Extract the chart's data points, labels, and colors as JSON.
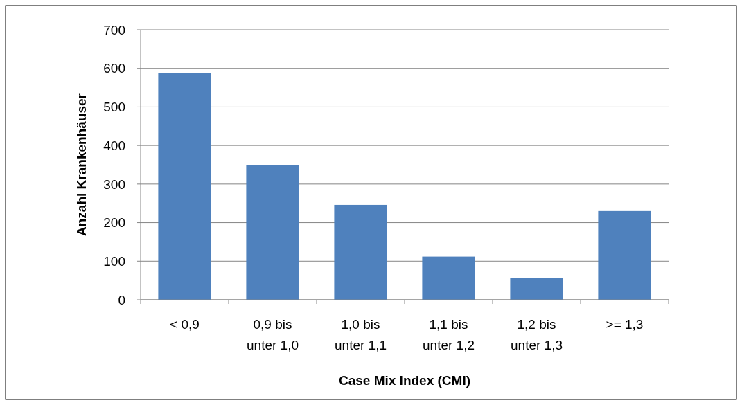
{
  "chart_data": {
    "type": "bar",
    "xlabel": "Case Mix Index (CMI)",
    "ylabel": "Anzahl Krankenhäuser",
    "categories": [
      "< 0,9",
      "0,9 bis\nunter 1,0",
      "1,0 bis\nunter 1,1",
      "1,1 bis\nunter 1,2",
      "1,2 bis\nunter 1,3",
      ">= 1,3"
    ],
    "values": [
      588,
      350,
      246,
      112,
      57,
      230
    ],
    "color": "#4f81bd",
    "ylim": [
      0,
      700
    ],
    "yticks": [
      0,
      100,
      200,
      300,
      400,
      500,
      600,
      700
    ],
    "grid": "y"
  }
}
